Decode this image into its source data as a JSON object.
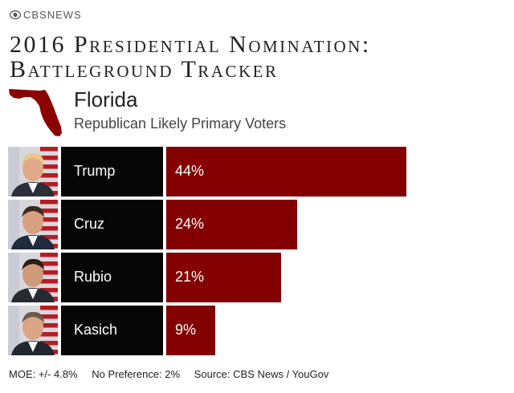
{
  "brand": {
    "logo_text": "CBSNEWS",
    "logo_icon": "cbs-eye-icon"
  },
  "title": {
    "line1": "2016 Presidential Nomination:",
    "line2": "Battleground Tracker"
  },
  "state": {
    "name": "Florida",
    "subtitle": "Republican Likely Primary Voters",
    "map_icon": "florida-map-icon"
  },
  "colors": {
    "bar": "#840000",
    "name_box": "#060606",
    "map": "#8b0000"
  },
  "chart_data": {
    "type": "bar",
    "orientation": "horizontal",
    "categories": [
      "Trump",
      "Cruz",
      "Rubio",
      "Kasich"
    ],
    "values": [
      44,
      24,
      21,
      9
    ],
    "value_labels": [
      "44%",
      "24%",
      "21%",
      "9%"
    ],
    "unit": "%",
    "xlim": [
      0,
      100
    ]
  },
  "footer": {
    "moe": "MOE: +/- 4.8%",
    "no_preference": "No Preference: 2%",
    "source": "Source: CBS News / YouGov"
  }
}
